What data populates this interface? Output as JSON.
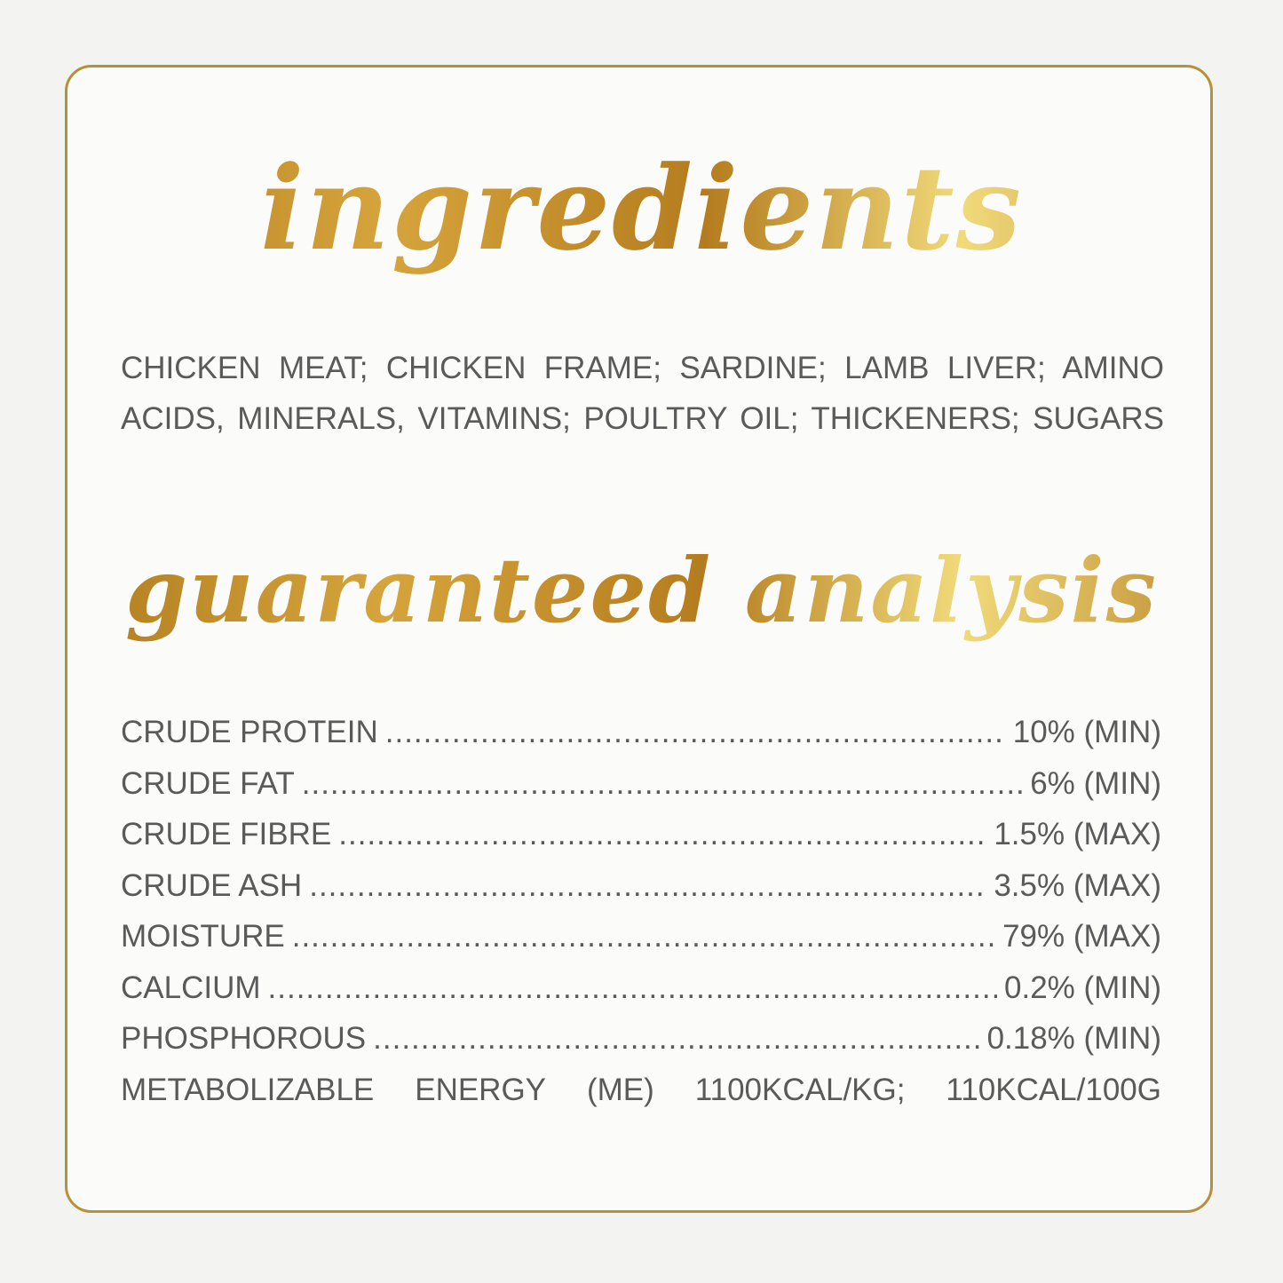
{
  "colors": {
    "gold": "#b8903a",
    "text": "#5a5a5a"
  },
  "ingredients": {
    "heading": "ingredients",
    "lines": [
      "CHICKEN MEAT; CHICKEN FRAME; SARDINE; LAMB LIVER; AMINO",
      "ACIDS, MINERALS, VITAMINS; POULTRY OIL; THICKENERS; SUGARS"
    ]
  },
  "analysis": {
    "heading": "guaranteed analysis",
    "rows": [
      {
        "label": "CRUDE PROTEIN",
        "value": "10% (MIN)"
      },
      {
        "label": "CRUDE FAT",
        "value": "6% (MIN)"
      },
      {
        "label": "CRUDE FIBRE",
        "value": "1.5% (MAX)"
      },
      {
        "label": "CRUDE ASH",
        "value": "3.5% (MAX)"
      },
      {
        "label": "MOISTURE",
        "value": "79% (MAX)"
      },
      {
        "label": "CALCIUM",
        "value": "0.2% (MIN)"
      },
      {
        "label": "PHOSPHOROUS",
        "value": "0.18% (MIN)"
      }
    ],
    "energy": [
      "METABOLIZABLE",
      "ENERGY",
      "(ME)",
      "1100KCAL/KG;",
      "110KCAL/100G"
    ]
  }
}
